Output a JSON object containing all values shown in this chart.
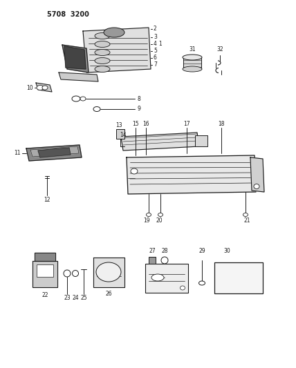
{
  "bg_color": "#ffffff",
  "line_color": "#1a1a1a",
  "text_color": "#1a1a1a",
  "header": "5708  3200",
  "figsize": [
    4.28,
    5.33
  ],
  "dpi": 100
}
